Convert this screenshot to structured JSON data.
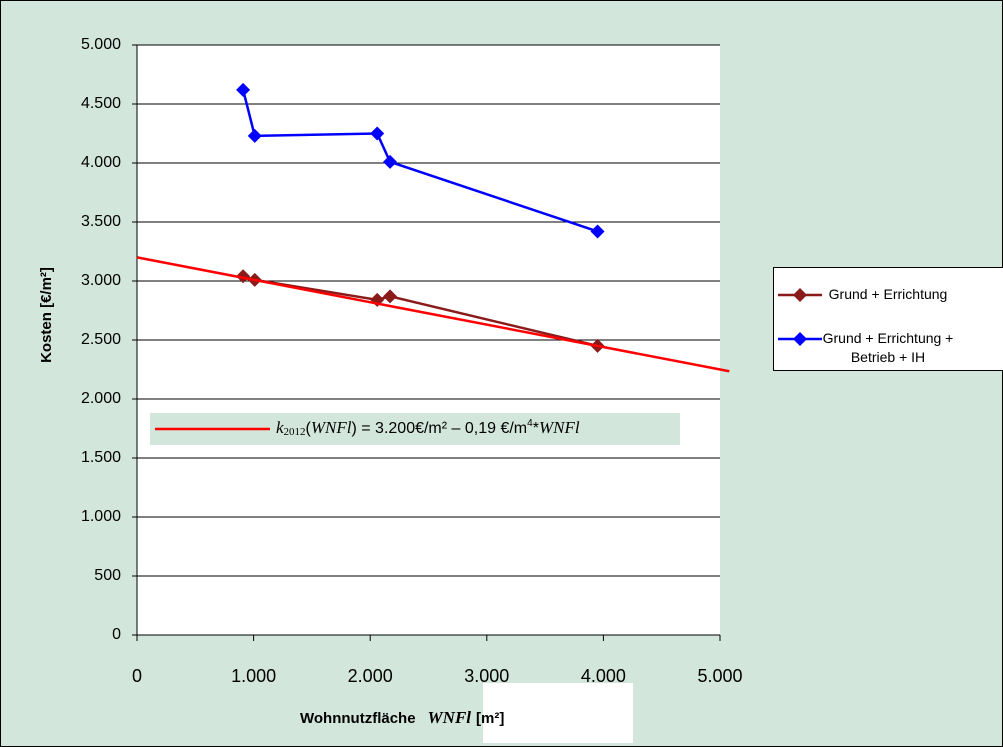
{
  "chart_data": {
    "type": "line",
    "y_label": "Kosten [€/m²]",
    "x_label_parts": [
      "Wohnnutzfläche",
      "WNFl",
      "[m²]"
    ],
    "xlim": [
      0,
      5000
    ],
    "ylim": [
      0,
      5000
    ],
    "xticks": [
      0,
      {
        "value": 1000,
        "label": "1.000"
      },
      {
        "value": 2000,
        "label": "2.000"
      },
      {
        "value": 3000,
        "label": "3.000"
      },
      {
        "value": 4000,
        "label": "4.000"
      },
      {
        "value": 5000,
        "label": "5.000"
      }
    ],
    "yticks": [
      0,
      500,
      {
        "value": 1000,
        "label": "1.000"
      },
      {
        "value": 1500,
        "label": "1.500"
      },
      {
        "value": 2000,
        "label": "2.000"
      },
      {
        "value": 2500,
        "label": "2.500"
      },
      {
        "value": 3000,
        "label": "3.000"
      },
      {
        "value": 3500,
        "label": "3.500"
      },
      {
        "value": 4000,
        "label": "4.000"
      },
      {
        "value": 4500,
        "label": "4.500"
      },
      {
        "value": 5000,
        "label": "5.000"
      }
    ],
    "grid": true,
    "series": [
      {
        "name": "Grund + Errichtung",
        "color": "#8b1a1a",
        "x": [
          910,
          1010,
          2060,
          2170,
          3950
        ],
        "values": [
          3040,
          3010,
          2840,
          2870,
          2450
        ]
      },
      {
        "name": "Grund + Errichtung + Betrieb + IH",
        "color": "#0000ff",
        "x": [
          910,
          1010,
          2060,
          2170,
          3950
        ],
        "values": [
          4620,
          4230,
          4250,
          4010,
          3420
        ]
      }
    ],
    "trendline": {
      "color": "#ff0000",
      "x": [
        0,
        5080
      ],
      "values": [
        3200,
        2235
      ]
    },
    "annotation_parts": [
      "k",
      "2012",
      "(",
      "WNFl",
      ") = 3.200€/m² – 0,19 €/m",
      "4",
      "*",
      "WNFl"
    ]
  }
}
